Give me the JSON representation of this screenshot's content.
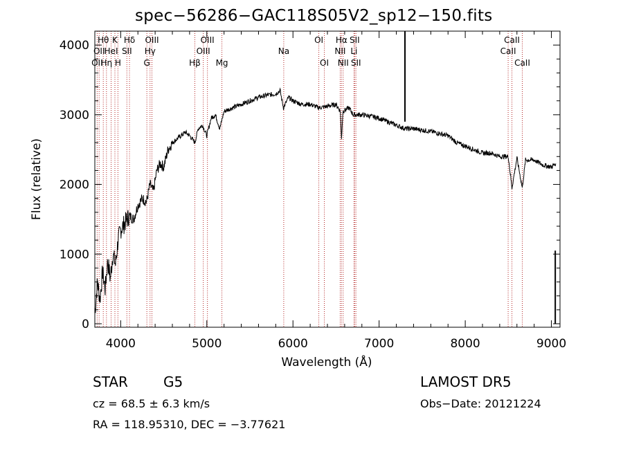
{
  "chart_data": {
    "type": "line",
    "title": "spec−56286−GAC118S05V2_sp12−150.fits",
    "xlabel": "Wavelength (Å)",
    "ylabel": "Flux (relative)",
    "xlim": [
      3700,
      9100
    ],
    "ylim": [
      -50,
      4200
    ],
    "xticks": [
      4000,
      5000,
      6000,
      7000,
      8000,
      9000
    ],
    "yticks": [
      0,
      1000,
      2000,
      3000,
      4000
    ],
    "grid": false,
    "series": [
      {
        "x": [
          3700,
          3730,
          3760,
          3790,
          3820,
          3850,
          3880,
          3910,
          3940,
          3970,
          4000,
          4050,
          4100,
          4150,
          4200,
          4250,
          4300,
          4340,
          4380,
          4420,
          4460,
          4500,
          4550,
          4600,
          4650,
          4700,
          4750,
          4800,
          4861,
          4900,
          4950,
          5000,
          5050,
          5100,
          5150,
          5200,
          5300,
          5400,
          5500,
          5600,
          5700,
          5800,
          5850,
          5890,
          5950,
          6000,
          6100,
          6200,
          6300,
          6400,
          6500,
          6550,
          6563,
          6580,
          6650,
          6700,
          6800,
          6900,
          7000,
          7100,
          7200,
          7300,
          7400,
          7500,
          7600,
          7700,
          7800,
          7900,
          8000,
          8100,
          8200,
          8300,
          8400,
          8500,
          8542,
          8600,
          8662,
          8700,
          8800,
          8900,
          9000,
          9050
        ],
        "y": [
          150,
          600,
          350,
          750,
          500,
          900,
          650,
          1000,
          850,
          1200,
          1350,
          1450,
          1550,
          1500,
          1700,
          1800,
          1750,
          2000,
          1900,
          2200,
          2300,
          2250,
          2500,
          2600,
          2650,
          2700,
          2750,
          2700,
          2600,
          2800,
          2850,
          2700,
          2950,
          3000,
          2800,
          3050,
          3100,
          3150,
          3200,
          3250,
          3280,
          3300,
          3350,
          3100,
          3250,
          3200,
          3150,
          3150,
          3100,
          3120,
          3150,
          3050,
          2650,
          3050,
          3100,
          3000,
          3000,
          2980,
          2950,
          2900,
          2850,
          2800,
          2800,
          2780,
          2760,
          2730,
          2700,
          2600,
          2550,
          2500,
          2450,
          2450,
          2400,
          2400,
          1950,
          2380,
          1950,
          2350,
          2350,
          2280,
          2250,
          2300
        ],
        "spikes": [
          {
            "x": 7300,
            "top": 4200,
            "base": 2900
          },
          {
            "x": 9045,
            "top": 1050,
            "base": 0
          }
        ]
      }
    ],
    "lines": [
      {
        "x": 3727,
        "labels": [
          "OII"
        ],
        "rows": [
          3
        ]
      },
      {
        "x": 3750,
        "labels": [
          "OII"
        ],
        "rows": [
          2
        ]
      },
      {
        "x": 3798,
        "labels": [
          "Hθ"
        ],
        "rows": [
          1
        ]
      },
      {
        "x": 3835,
        "labels": [
          "Hη"
        ],
        "rows": [
          3
        ]
      },
      {
        "x": 3889,
        "labels": [
          "HeI"
        ],
        "rows": [
          2
        ]
      },
      {
        "x": 3933,
        "labels": [
          "K"
        ],
        "rows": [
          1
        ]
      },
      {
        "x": 3968,
        "labels": [
          "H"
        ],
        "rows": [
          3
        ]
      },
      {
        "x": 4072,
        "labels": [
          "SII"
        ],
        "rows": [
          2
        ]
      },
      {
        "x": 4102,
        "labels": [
          "Hδ"
        ],
        "rows": [
          1
        ]
      },
      {
        "x": 4304,
        "labels": [
          "G"
        ],
        "rows": [
          3
        ]
      },
      {
        "x": 4341,
        "labels": [
          "Hγ"
        ],
        "rows": [
          2
        ]
      },
      {
        "x": 4363,
        "labels": [
          "OIII"
        ],
        "rows": [
          1
        ]
      },
      {
        "x": 4861,
        "labels": [
          "Hβ"
        ],
        "rows": [
          3
        ]
      },
      {
        "x": 4959,
        "labels": [
          "OIII"
        ],
        "rows": [
          2
        ]
      },
      {
        "x": 5007,
        "labels": [
          "OIII"
        ],
        "rows": [
          1
        ]
      },
      {
        "x": 5175,
        "labels": [
          "Mg"
        ],
        "rows": [
          3
        ]
      },
      {
        "x": 5893,
        "labels": [
          "Na"
        ],
        "rows": [
          2
        ]
      },
      {
        "x": 6300,
        "labels": [
          "OI"
        ],
        "rows": [
          1
        ]
      },
      {
        "x": 6364,
        "labels": [
          "OI"
        ],
        "rows": [
          3
        ]
      },
      {
        "x": 6548,
        "labels": [
          "NII"
        ],
        "rows": [
          2
        ]
      },
      {
        "x": 6563,
        "labels": [
          "Hα"
        ],
        "rows": [
          1
        ]
      },
      {
        "x": 6583,
        "labels": [
          "NII"
        ],
        "rows": [
          3
        ]
      },
      {
        "x": 6708,
        "labels": [
          "Li"
        ],
        "rows": [
          2
        ]
      },
      {
        "x": 6716,
        "labels": [
          "SII"
        ],
        "rows": [
          1
        ]
      },
      {
        "x": 6731,
        "labels": [
          "SII"
        ],
        "rows": [
          3
        ]
      },
      {
        "x": 8498,
        "labels": [
          "CaII"
        ],
        "rows": [
          2
        ]
      },
      {
        "x": 8542,
        "labels": [
          "CaII"
        ],
        "rows": [
          1
        ]
      },
      {
        "x": 8662,
        "labels": [
          "CaII"
        ],
        "rows": [
          3
        ]
      }
    ]
  },
  "info": {
    "class": "STAR",
    "subclass": "G5",
    "survey": "LAMOST DR5",
    "cz": "cz = 68.5 ± 6.3 km/s",
    "obs_date": "Obs−Date: 20121224",
    "coords": "RA = 118.95310, DEC =  −3.77621"
  },
  "colors": {
    "spectrum": "#000000",
    "line_marker": "#b22222",
    "axes": "#000000"
  }
}
